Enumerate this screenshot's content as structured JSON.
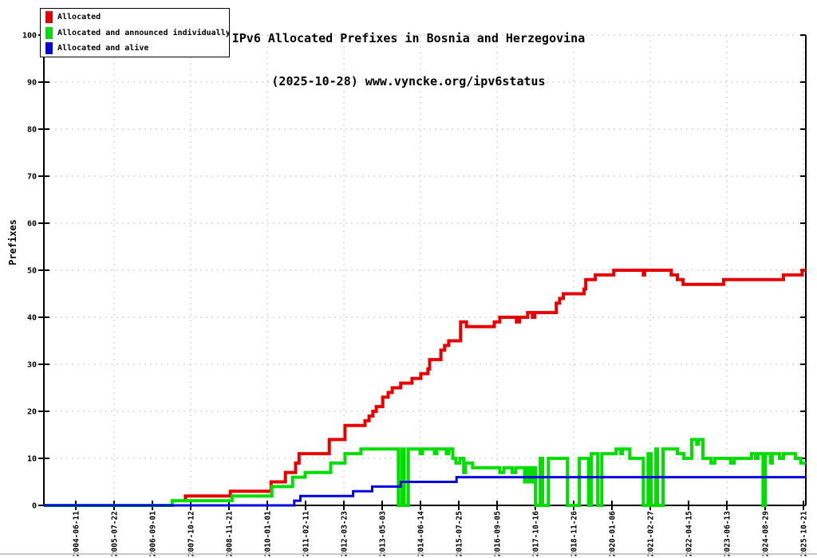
{
  "chart_data": {
    "type": "line",
    "title_line1": "IPv6 Allocated Prefixes in Bosnia and Herzegovina",
    "title_line2": "(2025-10-28) www.vyncke.org/ipv6status",
    "ylabel": "Prefixes",
    "ylim": [
      0,
      100
    ],
    "y_ticks": [
      0,
      10,
      20,
      30,
      40,
      50,
      60,
      70,
      80,
      90,
      100
    ],
    "x_tick_labels": [
      "2004-06-11",
      "2005-07-22",
      "2006-09-01",
      "2007-10-12",
      "2008-11-21",
      "2010-01-01",
      "2011-02-11",
      "2012-03-23",
      "2013-05-03",
      "2014-06-14",
      "2015-07-25",
      "2016-09-05",
      "2017-10-16",
      "2018-11-26",
      "2020-01-06",
      "2021-02-27",
      "2022-04-15",
      "2023-06-13",
      "2024-08-29",
      "2025-10-21"
    ],
    "x_range_years": [
      2003.5,
      2025.897
    ],
    "grid": "dashed",
    "grid_color": "#c0c0c0",
    "legend_position": "top-left",
    "series": [
      {
        "name": "Allocated",
        "color": "#e60000",
        "width": 4,
        "points": [
          [
            2007.63,
            1
          ],
          [
            2007.66,
            2
          ],
          [
            2008.98,
            3
          ],
          [
            2010.18,
            5
          ],
          [
            2010.6,
            7
          ],
          [
            2010.9,
            9
          ],
          [
            2011.0,
            11
          ],
          [
            2011.89,
            14
          ],
          [
            2012.35,
            17
          ],
          [
            2012.94,
            18
          ],
          [
            2013.06,
            19
          ],
          [
            2013.17,
            20
          ],
          [
            2013.27,
            21
          ],
          [
            2013.46,
            23
          ],
          [
            2013.62,
            24
          ],
          [
            2013.74,
            25
          ],
          [
            2013.99,
            26
          ],
          [
            2014.32,
            27
          ],
          [
            2014.58,
            28
          ],
          [
            2014.79,
            29
          ],
          [
            2014.84,
            31
          ],
          [
            2015.17,
            33
          ],
          [
            2015.28,
            34
          ],
          [
            2015.4,
            35
          ],
          [
            2015.75,
            39
          ],
          [
            2015.92,
            38
          ],
          [
            2016.74,
            39
          ],
          [
            2016.9,
            40
          ],
          [
            2017.39,
            39
          ],
          [
            2017.48,
            40
          ],
          [
            2017.72,
            41
          ],
          [
            2017.86,
            40
          ],
          [
            2017.93,
            41
          ],
          [
            2018.56,
            43
          ],
          [
            2018.66,
            44
          ],
          [
            2018.77,
            45
          ],
          [
            2019.38,
            46
          ],
          [
            2019.43,
            48
          ],
          [
            2019.71,
            49
          ],
          [
            2020.25,
            50
          ],
          [
            2021.12,
            49
          ],
          [
            2021.16,
            50
          ],
          [
            2021.94,
            49
          ],
          [
            2022.12,
            48
          ],
          [
            2022.29,
            47
          ],
          [
            2023.48,
            48
          ],
          [
            2025.24,
            49
          ],
          [
            2025.79,
            50
          ]
        ]
      },
      {
        "name": "Allocated and announced individually",
        "color": "#00dd00",
        "width": 4,
        "points": [
          [
            2003.5,
            0
          ],
          [
            2007.27,
            1
          ],
          [
            2009.03,
            2
          ],
          [
            2010.2,
            4
          ],
          [
            2010.81,
            6
          ],
          [
            2011.18,
            7
          ],
          [
            2011.93,
            9
          ],
          [
            2012.35,
            11
          ],
          [
            2012.82,
            12
          ],
          [
            2013.92,
            0
          ],
          [
            2014.02,
            12
          ],
          [
            2014.09,
            0
          ],
          [
            2014.21,
            12
          ],
          [
            2014.56,
            11
          ],
          [
            2014.63,
            12
          ],
          [
            2014.98,
            11
          ],
          [
            2015.05,
            12
          ],
          [
            2015.33,
            11
          ],
          [
            2015.4,
            12
          ],
          [
            2015.52,
            10
          ],
          [
            2015.61,
            9
          ],
          [
            2015.73,
            10
          ],
          [
            2015.84,
            7
          ],
          [
            2015.89,
            9
          ],
          [
            2016.1,
            8
          ],
          [
            2016.9,
            7
          ],
          [
            2017.02,
            8
          ],
          [
            2017.27,
            7
          ],
          [
            2017.37,
            8
          ],
          [
            2017.63,
            5
          ],
          [
            2017.7,
            8
          ],
          [
            2017.79,
            5
          ],
          [
            2017.86,
            8
          ],
          [
            2017.95,
            0
          ],
          [
            2018.09,
            10
          ],
          [
            2018.16,
            0
          ],
          [
            2018.33,
            10
          ],
          [
            2018.89,
            0
          ],
          [
            2019.24,
            10
          ],
          [
            2019.51,
            0
          ],
          [
            2019.59,
            11
          ],
          [
            2019.78,
            0
          ],
          [
            2019.9,
            11
          ],
          [
            2020.32,
            12
          ],
          [
            2020.46,
            11
          ],
          [
            2020.51,
            12
          ],
          [
            2020.72,
            10
          ],
          [
            2021.12,
            0
          ],
          [
            2021.26,
            11
          ],
          [
            2021.35,
            0
          ],
          [
            2021.49,
            12
          ],
          [
            2021.54,
            0
          ],
          [
            2021.7,
            12
          ],
          [
            2022.12,
            11
          ],
          [
            2022.31,
            10
          ],
          [
            2022.54,
            14
          ],
          [
            2022.69,
            13
          ],
          [
            2022.73,
            14
          ],
          [
            2022.87,
            10
          ],
          [
            2023.11,
            9
          ],
          [
            2023.22,
            10
          ],
          [
            2023.69,
            9
          ],
          [
            2023.79,
            10
          ],
          [
            2024.3,
            11
          ],
          [
            2024.42,
            10
          ],
          [
            2024.49,
            11
          ],
          [
            2024.64,
            0
          ],
          [
            2024.7,
            11
          ],
          [
            2024.86,
            9
          ],
          [
            2024.91,
            11
          ],
          [
            2025.12,
            10
          ],
          [
            2025.24,
            11
          ],
          [
            2025.59,
            10
          ],
          [
            2025.75,
            9
          ]
        ]
      },
      {
        "name": "Allocated and alive",
        "color": "#0000e0",
        "width": 3,
        "points": [
          [
            2003.5,
            0
          ],
          [
            2010.86,
            1
          ],
          [
            2011.04,
            2
          ],
          [
            2012.59,
            3
          ],
          [
            2013.15,
            4
          ],
          [
            2013.99,
            5
          ],
          [
            2015.63,
            6
          ]
        ]
      }
    ]
  }
}
